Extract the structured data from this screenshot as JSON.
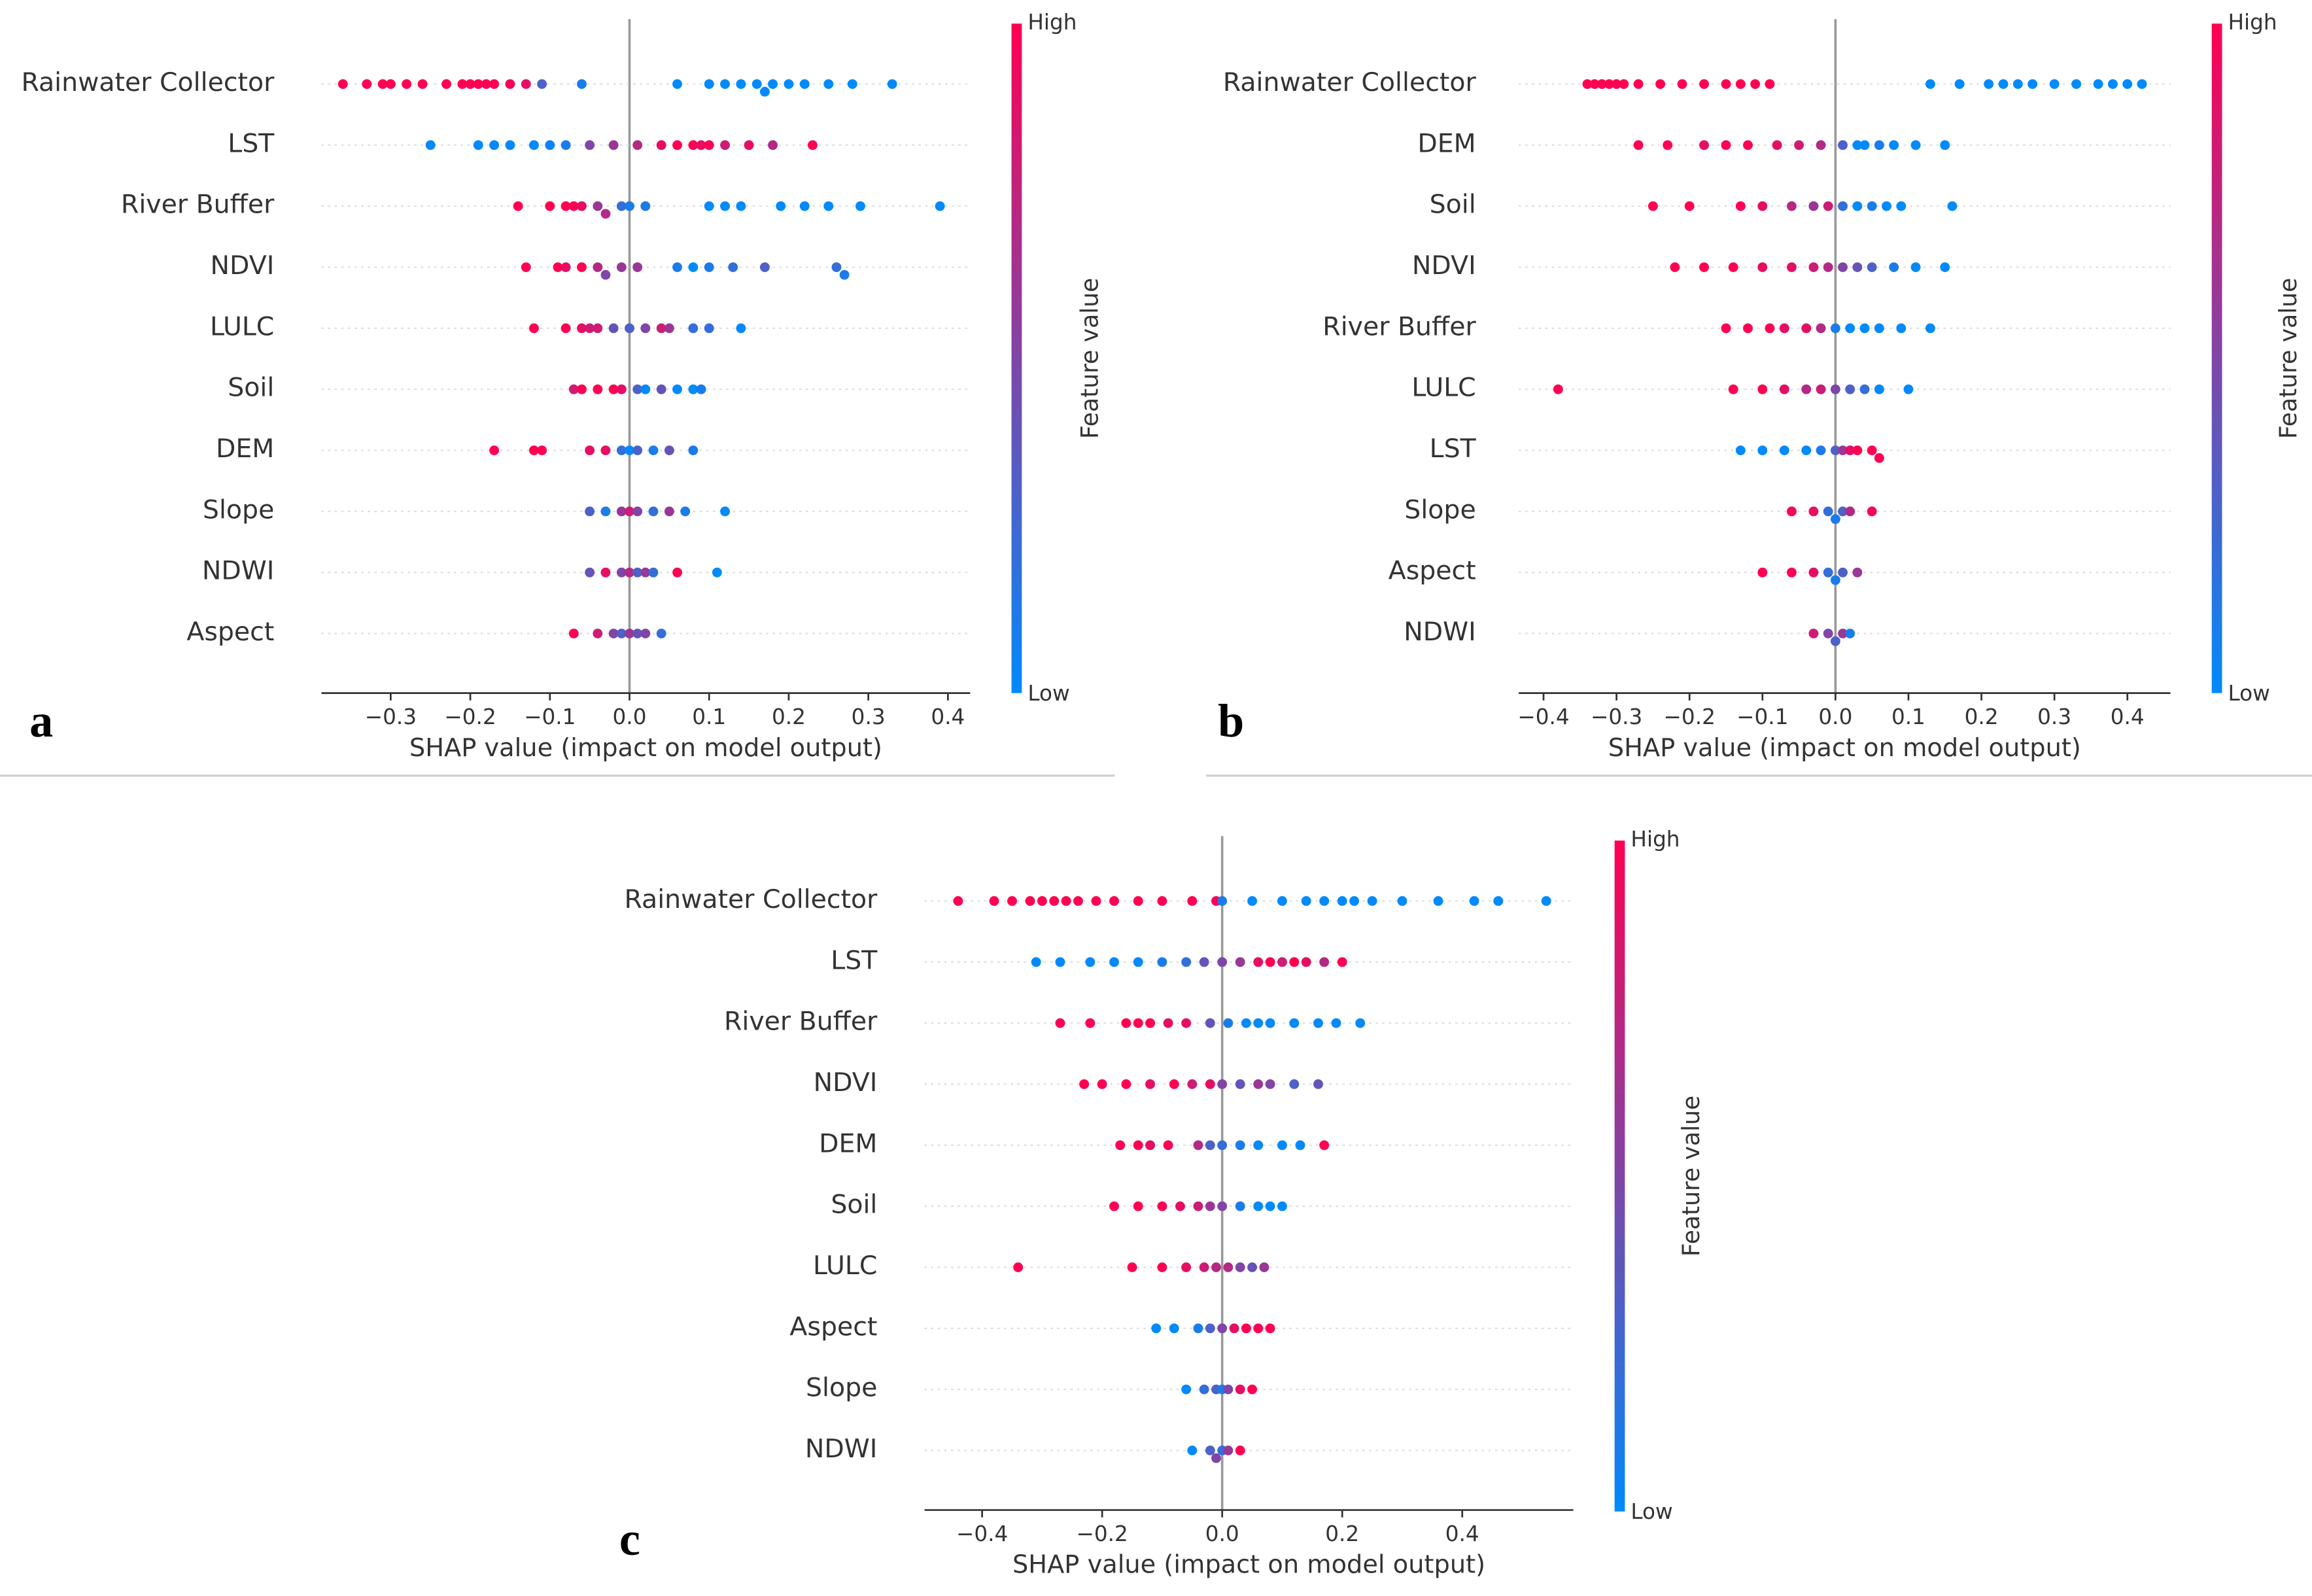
{
  "chart_data": [
    {
      "type": "beeswarm",
      "panel_label": "a",
      "xlabel": "SHAP value (impact on model output)",
      "xlim": [
        -0.387,
        0.428
      ],
      "xticks": [
        {
          "value": -0.3,
          "label": "−0.3"
        },
        {
          "value": -0.2,
          "label": "−0.2"
        },
        {
          "value": -0.1,
          "label": "−0.1"
        },
        {
          "value": 0,
          "label": "0.0"
        },
        {
          "value": 0.1,
          "label": "0.1"
        },
        {
          "value": 0.2,
          "label": "0.2"
        },
        {
          "value": 0.3,
          "label": "0.3"
        },
        {
          "value": 0.4,
          "label": "0.4"
        }
      ],
      "colorbar": {
        "label": "Feature value",
        "high": "High",
        "low": "Low",
        "colors": [
          "#008afb",
          "#ff0052"
        ]
      },
      "series": [
        {
          "name": "Rainwater Collector",
          "values": [
            -0.36,
            -0.33,
            -0.31,
            -0.3,
            -0.28,
            -0.26,
            -0.23,
            -0.21,
            -0.2,
            -0.19,
            -0.18,
            -0.17,
            -0.15,
            -0.13,
            -0.11,
            -0.06,
            0.06,
            0.1,
            0.12,
            0.14,
            0.16,
            0.17,
            0.18,
            0.2,
            0.22,
            0.25,
            0.28,
            0.33
          ],
          "feature_values": [
            1,
            1,
            1,
            1,
            1,
            1,
            1,
            1,
            1,
            1,
            1,
            1,
            0.95,
            0.9,
            0.3,
            0.1,
            0,
            0,
            0,
            0,
            0,
            0,
            0,
            0,
            0,
            0,
            0,
            0
          ]
        },
        {
          "name": "LST",
          "values": [
            -0.25,
            -0.19,
            -0.17,
            -0.15,
            -0.12,
            -0.1,
            -0.08,
            -0.05,
            -0.02,
            0.01,
            0.04,
            0.06,
            0.08,
            0.09,
            0.1,
            0.12,
            0.15,
            0.18,
            0.23
          ],
          "feature_values": [
            0,
            0,
            0,
            0,
            0,
            0.05,
            0.1,
            0.5,
            0.6,
            0.7,
            0.9,
            1,
            1,
            0.9,
            1,
            0.8,
            0.9,
            0.7,
            1
          ]
        },
        {
          "name": "River Buffer",
          "values": [
            -0.14,
            -0.1,
            -0.08,
            -0.07,
            -0.06,
            -0.04,
            -0.03,
            -0.01,
            0.0,
            0.02,
            0.1,
            0.12,
            0.14,
            0.19,
            0.22,
            0.25,
            0.29,
            0.39
          ],
          "feature_values": [
            1,
            1,
            1,
            1,
            0.9,
            0.6,
            0.7,
            0.2,
            0.1,
            0.1,
            0,
            0,
            0,
            0,
            0,
            0,
            0,
            0
          ]
        },
        {
          "name": "NDVI",
          "values": [
            -0.13,
            -0.09,
            -0.08,
            -0.06,
            -0.04,
            -0.03,
            -0.01,
            0.01,
            0.06,
            0.08,
            0.1,
            0.13,
            0.17,
            0.26,
            0.27
          ],
          "feature_values": [
            1,
            1,
            0.9,
            1,
            0.7,
            0.5,
            0.6,
            0.6,
            0.1,
            0,
            0.1,
            0.2,
            0.3,
            0.2,
            0.1
          ]
        },
        {
          "name": "LULC",
          "values": [
            -0.12,
            -0.08,
            -0.06,
            -0.05,
            -0.04,
            -0.02,
            0.0,
            0.02,
            0.04,
            0.05,
            0.08,
            0.1,
            0.14
          ],
          "feature_values": [
            1,
            1,
            0.9,
            0.8,
            0.8,
            0.4,
            0.3,
            0.5,
            0.8,
            0.6,
            0.2,
            0.2,
            0
          ]
        },
        {
          "name": "Soil",
          "values": [
            -0.07,
            -0.06,
            -0.04,
            -0.02,
            -0.01,
            0.01,
            0.02,
            0.04,
            0.06,
            0.08,
            0.09
          ],
          "feature_values": [
            0.8,
            1,
            1,
            1,
            0.9,
            0.3,
            0,
            0.4,
            0,
            0,
            0.1
          ]
        },
        {
          "name": "DEM",
          "values": [
            -0.17,
            -0.12,
            -0.11,
            -0.05,
            -0.03,
            -0.01,
            0.0,
            0.01,
            0.03,
            0.05,
            0.08
          ],
          "feature_values": [
            1,
            1,
            1,
            0.9,
            0.9,
            0.2,
            0,
            0.3,
            0.1,
            0.4,
            0.1
          ]
        },
        {
          "name": "Slope",
          "values": [
            -0.05,
            -0.03,
            -0.01,
            0.0,
            0.01,
            0.03,
            0.05,
            0.07,
            0.12
          ],
          "feature_values": [
            0.3,
            0.1,
            0.6,
            0.8,
            0.5,
            0.2,
            0.6,
            0.1,
            0
          ]
        },
        {
          "name": "NDWI",
          "values": [
            -0.05,
            -0.03,
            -0.01,
            0.0,
            0.01,
            0.02,
            0.03,
            0.06,
            0.11
          ],
          "feature_values": [
            0.4,
            0.9,
            0.5,
            0.7,
            0.3,
            0.6,
            0.2,
            1,
            0
          ]
        },
        {
          "name": "Aspect",
          "values": [
            -0.07,
            -0.04,
            -0.02,
            -0.01,
            0.0,
            0.01,
            0.02,
            0.04
          ],
          "feature_values": [
            1,
            0.8,
            0.5,
            0.3,
            0.6,
            0.4,
            0.5,
            0.2
          ]
        }
      ]
    },
    {
      "type": "beeswarm",
      "panel_label": "b",
      "xlabel": "SHAP value (impact on model output)",
      "xlim": [
        -0.434,
        0.459
      ],
      "xticks": [
        {
          "value": -0.4,
          "label": "−0.4"
        },
        {
          "value": -0.3,
          "label": "−0.3"
        },
        {
          "value": -0.2,
          "label": "−0.2"
        },
        {
          "value": -0.1,
          "label": "−0.1"
        },
        {
          "value": 0,
          "label": "0.0"
        },
        {
          "value": 0.1,
          "label": "0.1"
        },
        {
          "value": 0.2,
          "label": "0.2"
        },
        {
          "value": 0.3,
          "label": "0.3"
        },
        {
          "value": 0.4,
          "label": "0.4"
        }
      ],
      "colorbar": {
        "label": "Feature value",
        "high": "High",
        "low": "Low",
        "colors": [
          "#008afb",
          "#ff0052"
        ]
      },
      "series": [
        {
          "name": "Rainwater Collector",
          "values": [
            -0.34,
            -0.33,
            -0.32,
            -0.31,
            -0.3,
            -0.29,
            -0.27,
            -0.24,
            -0.21,
            -0.18,
            -0.15,
            -0.13,
            -0.11,
            -0.09,
            0.13,
            0.17,
            0.21,
            0.23,
            0.25,
            0.27,
            0.3,
            0.33,
            0.36,
            0.38,
            0.4,
            0.42
          ],
          "feature_values": [
            1,
            1,
            1,
            1,
            1,
            1,
            1,
            1,
            1,
            1,
            1,
            1,
            1,
            1,
            0,
            0,
            0,
            0,
            0,
            0,
            0,
            0,
            0,
            0,
            0,
            0
          ]
        },
        {
          "name": "DEM",
          "values": [
            -0.27,
            -0.23,
            -0.18,
            -0.15,
            -0.12,
            -0.08,
            -0.05,
            -0.02,
            0.01,
            0.03,
            0.04,
            0.06,
            0.08,
            0.11,
            0.15
          ],
          "feature_values": [
            1,
            1,
            0.9,
            1,
            1,
            0.9,
            0.8,
            0.7,
            0.3,
            0,
            0,
            0.1,
            0,
            0,
            0
          ]
        },
        {
          "name": "Soil",
          "values": [
            -0.25,
            -0.2,
            -0.13,
            -0.1,
            -0.06,
            -0.03,
            -0.01,
            0.01,
            0.03,
            0.05,
            0.07,
            0.09,
            0.16
          ],
          "feature_values": [
            1,
            1,
            1,
            0.9,
            0.7,
            0.6,
            0.8,
            0.2,
            0,
            0.1,
            0,
            0,
            0
          ]
        },
        {
          "name": "NDVI",
          "values": [
            -0.22,
            -0.18,
            -0.14,
            -0.1,
            -0.06,
            -0.03,
            -0.01,
            0.01,
            0.03,
            0.05,
            0.08,
            0.11,
            0.15
          ],
          "feature_values": [
            1,
            1,
            1,
            0.9,
            0.9,
            0.8,
            0.7,
            0.5,
            0.4,
            0.3,
            0.1,
            0,
            0
          ]
        },
        {
          "name": "River Buffer",
          "values": [
            -0.15,
            -0.12,
            -0.09,
            -0.07,
            -0.04,
            -0.02,
            0.0,
            0.02,
            0.04,
            0.06,
            0.09,
            0.13
          ],
          "feature_values": [
            1,
            1,
            1,
            0.9,
            0.9,
            0.7,
            0.1,
            0,
            0,
            0,
            0,
            0
          ]
        },
        {
          "name": "LULC",
          "values": [
            -0.38,
            -0.14,
            -0.1,
            -0.07,
            -0.04,
            -0.02,
            0.0,
            0.02,
            0.04,
            0.06,
            0.1
          ],
          "feature_values": [
            1,
            1,
            1,
            0.9,
            0.7,
            0.8,
            0.5,
            0.3,
            0.2,
            0,
            0
          ]
        },
        {
          "name": "LST",
          "values": [
            -0.13,
            -0.1,
            -0.07,
            -0.04,
            -0.02,
            0.0,
            0.01,
            0.02,
            0.03,
            0.05,
            0.06
          ],
          "feature_values": [
            0,
            0,
            0,
            0,
            0.1,
            0.3,
            0.6,
            0.9,
            1,
            1,
            1
          ]
        },
        {
          "name": "Slope",
          "values": [
            -0.06,
            -0.03,
            -0.01,
            0.0,
            0.01,
            0.02,
            0.05
          ],
          "feature_values": [
            1,
            0.9,
            0.2,
            0.1,
            0.3,
            0.7,
            1
          ]
        },
        {
          "name": "Aspect",
          "values": [
            -0.1,
            -0.06,
            -0.03,
            -0.01,
            0.0,
            0.01,
            0.03
          ],
          "feature_values": [
            1,
            1,
            0.9,
            0.2,
            0.1,
            0.3,
            0.6
          ]
        },
        {
          "name": "NDWI",
          "values": [
            -0.03,
            -0.01,
            0.0,
            0.01,
            0.02
          ],
          "feature_values": [
            0.8,
            0.5,
            0.3,
            0.6,
            0.1
          ]
        }
      ]
    },
    {
      "type": "beeswarm",
      "panel_label": "c",
      "xlabel": "SHAP value (impact on model output)",
      "xlim": [
        -0.496,
        0.585
      ],
      "xticks": [
        {
          "value": -0.4,
          "label": "−0.4"
        },
        {
          "value": -0.2,
          "label": "−0.2"
        },
        {
          "value": 0,
          "label": "0.0"
        },
        {
          "value": 0.2,
          "label": "0.2"
        },
        {
          "value": 0.4,
          "label": "0.4"
        }
      ],
      "colorbar": {
        "label": "Feature value",
        "high": "High",
        "low": "Low",
        "colors": [
          "#008afb",
          "#ff0052"
        ]
      },
      "series": [
        {
          "name": "Rainwater Collector",
          "values": [
            -0.44,
            -0.38,
            -0.35,
            -0.32,
            -0.3,
            -0.28,
            -0.26,
            -0.24,
            -0.21,
            -0.18,
            -0.14,
            -0.1,
            -0.05,
            -0.01,
            0.0,
            0.05,
            0.1,
            0.14,
            0.17,
            0.2,
            0.22,
            0.25,
            0.3,
            0.36,
            0.42,
            0.46,
            0.54
          ],
          "feature_values": [
            1,
            1,
            1,
            1,
            1,
            1,
            1,
            1,
            1,
            1,
            1,
            1,
            1,
            1,
            0.1,
            0,
            0,
            0,
            0,
            0,
            0,
            0,
            0,
            0,
            0,
            0,
            0
          ]
        },
        {
          "name": "LST",
          "values": [
            -0.31,
            -0.27,
            -0.22,
            -0.18,
            -0.14,
            -0.1,
            -0.06,
            -0.03,
            0.0,
            0.03,
            0.06,
            0.08,
            0.1,
            0.12,
            0.14,
            0.17,
            0.2
          ],
          "feature_values": [
            0,
            0,
            0,
            0,
            0,
            0.1,
            0.2,
            0.4,
            0.5,
            0.6,
            0.9,
            1,
            0.8,
            1,
            0.9,
            0.7,
            1
          ]
        },
        {
          "name": "River Buffer",
          "values": [
            -0.27,
            -0.22,
            -0.16,
            -0.14,
            -0.12,
            -0.09,
            -0.06,
            -0.02,
            0.01,
            0.04,
            0.06,
            0.08,
            0.12,
            0.16,
            0.19,
            0.23
          ],
          "feature_values": [
            1,
            1,
            1,
            1,
            1,
            0.9,
            0.9,
            0.4,
            0.1,
            0,
            0,
            0,
            0,
            0,
            0,
            0
          ]
        },
        {
          "name": "NDVI",
          "values": [
            -0.23,
            -0.2,
            -0.16,
            -0.12,
            -0.08,
            -0.05,
            -0.02,
            0.0,
            0.03,
            0.06,
            0.08,
            0.12,
            0.16
          ],
          "feature_values": [
            1,
            1,
            1,
            0.9,
            1,
            0.8,
            0.9,
            0.5,
            0.4,
            0.6,
            0.5,
            0.3,
            0.4
          ]
        },
        {
          "name": "DEM",
          "values": [
            -0.17,
            -0.14,
            -0.12,
            -0.09,
            -0.04,
            -0.02,
            0.0,
            0.03,
            0.06,
            0.1,
            0.13,
            0.17
          ],
          "feature_values": [
            1,
            1,
            0.9,
            1,
            0.7,
            0.3,
            0.2,
            0.1,
            0,
            0,
            0,
            1
          ]
        },
        {
          "name": "Soil",
          "values": [
            -0.18,
            -0.14,
            -0.1,
            -0.07,
            -0.04,
            -0.02,
            0.0,
            0.03,
            0.06,
            0.08,
            0.1
          ],
          "feature_values": [
            1,
            1,
            1,
            0.9,
            0.8,
            0.6,
            0.5,
            0.1,
            0,
            0,
            0
          ]
        },
        {
          "name": "LULC",
          "values": [
            -0.34,
            -0.15,
            -0.1,
            -0.06,
            -0.03,
            -0.01,
            0.01,
            0.03,
            0.05,
            0.07
          ],
          "feature_values": [
            1,
            1,
            1,
            0.9,
            0.8,
            0.7,
            0.7,
            0.5,
            0.4,
            0.6
          ]
        },
        {
          "name": "Aspect",
          "values": [
            -0.11,
            -0.08,
            -0.04,
            -0.02,
            0.0,
            0.02,
            0.04,
            0.06,
            0.08
          ],
          "feature_values": [
            0,
            0,
            0.1,
            0.3,
            0.5,
            0.9,
            1,
            1,
            1
          ]
        },
        {
          "name": "Slope",
          "values": [
            -0.06,
            -0.03,
            -0.01,
            0.0,
            0.01,
            0.03,
            0.05
          ],
          "feature_values": [
            0,
            0.2,
            0.3,
            0.1,
            0.5,
            0.9,
            1
          ]
        },
        {
          "name": "NDWI",
          "values": [
            -0.05,
            -0.02,
            -0.01,
            0.0,
            0.01,
            0.03
          ],
          "feature_values": [
            0,
            0.3,
            0.5,
            0.2,
            0.6,
            1
          ]
        }
      ]
    }
  ]
}
